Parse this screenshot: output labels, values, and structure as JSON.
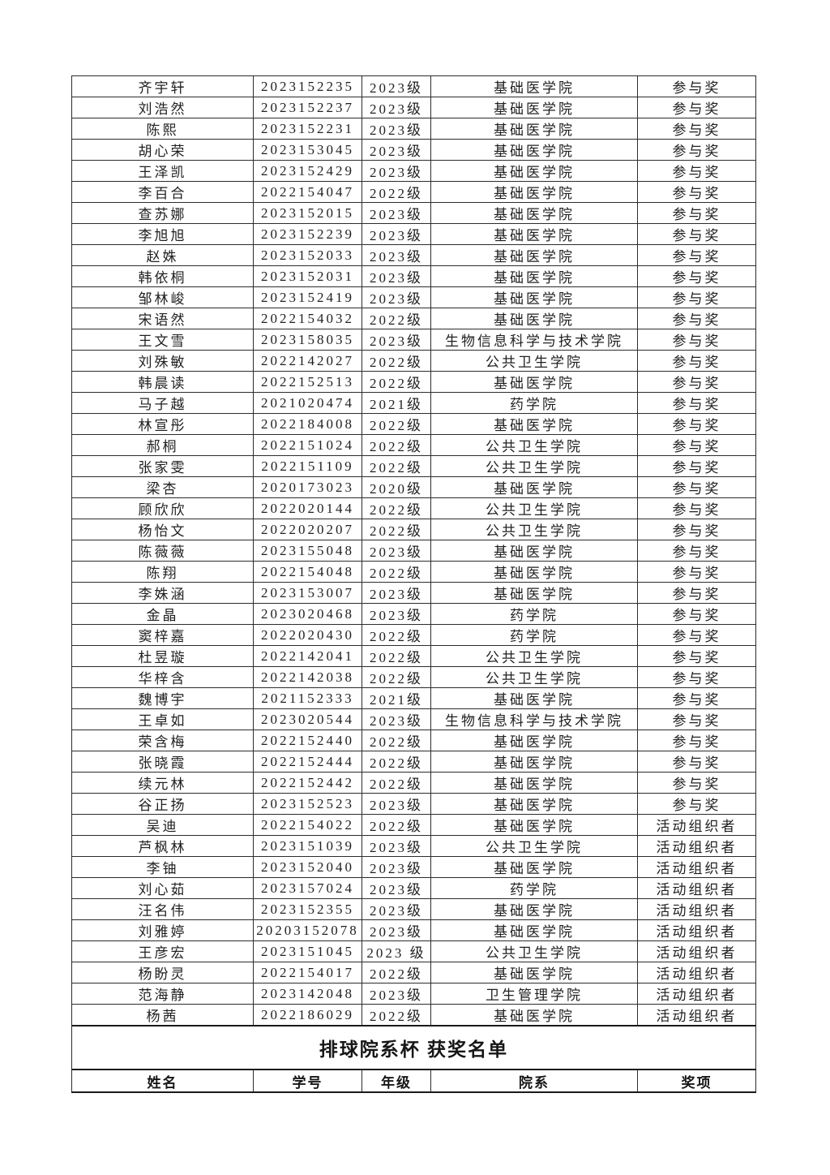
{
  "colors": {
    "page_background": "#ffffff",
    "border": "#2c2c2c",
    "text": "#1f1f1f"
  },
  "section": {
    "title": "排球院系杯 获奖名单"
  },
  "table": {
    "headers": [
      "姓名",
      "学号",
      "年级",
      "院系",
      "奖项"
    ],
    "column_keys": [
      "name",
      "student_id",
      "grade",
      "department",
      "award"
    ],
    "rows": [
      {
        "name": "齐宇轩",
        "student_id": "2023152235",
        "grade": "2023级",
        "department": "基础医学院",
        "award": "参与奖"
      },
      {
        "name": "刘浩然",
        "student_id": "2023152237",
        "grade": "2023级",
        "department": "基础医学院",
        "award": "参与奖"
      },
      {
        "name": "陈熙",
        "student_id": "2023152231",
        "grade": "2023级",
        "department": "基础医学院",
        "award": "参与奖"
      },
      {
        "name": "胡心荣",
        "student_id": "2023153045",
        "grade": "2023级",
        "department": "基础医学院",
        "award": "参与奖"
      },
      {
        "name": "王泽凯",
        "student_id": "2023152429",
        "grade": "2023级",
        "department": "基础医学院",
        "award": "参与奖"
      },
      {
        "name": "李百合",
        "student_id": "2022154047",
        "grade": "2022级",
        "department": "基础医学院",
        "award": "参与奖"
      },
      {
        "name": "查苏娜",
        "student_id": "2023152015",
        "grade": "2023级",
        "department": "基础医学院",
        "award": "参与奖"
      },
      {
        "name": "李旭旭",
        "student_id": "2023152239",
        "grade": "2023级",
        "department": "基础医学院",
        "award": "参与奖"
      },
      {
        "name": "赵姝",
        "student_id": "2023152033",
        "grade": "2023级",
        "department": "基础医学院",
        "award": "参与奖"
      },
      {
        "name": "韩依桐",
        "student_id": "2023152031",
        "grade": "2023级",
        "department": "基础医学院",
        "award": "参与奖"
      },
      {
        "name": "邹林峻",
        "student_id": "2023152419",
        "grade": "2023级",
        "department": "基础医学院",
        "award": "参与奖"
      },
      {
        "name": "宋语然",
        "student_id": "2022154032",
        "grade": "2022级",
        "department": "基础医学院",
        "award": "参与奖"
      },
      {
        "name": "王文雪",
        "student_id": "2023158035",
        "grade": "2023级",
        "department": "生物信息科学与技术学院",
        "award": "参与奖"
      },
      {
        "name": "刘殊敏",
        "student_id": "2022142027",
        "grade": "2022级",
        "department": "公共卫生学院",
        "award": "参与奖"
      },
      {
        "name": "韩晨读",
        "student_id": "2022152513",
        "grade": "2022级",
        "department": "基础医学院",
        "award": "参与奖"
      },
      {
        "name": "马子越",
        "student_id": "2021020474",
        "grade": "2021级",
        "department": "药学院",
        "award": "参与奖"
      },
      {
        "name": "林宣彤",
        "student_id": "2022184008",
        "grade": "2022级",
        "department": "基础医学院",
        "award": "参与奖"
      },
      {
        "name": "郝桐",
        "student_id": "2022151024",
        "grade": "2022级",
        "department": "公共卫生学院",
        "award": "参与奖"
      },
      {
        "name": "张家雯",
        "student_id": "2022151109",
        "grade": "2022级",
        "department": "公共卫生学院",
        "award": "参与奖"
      },
      {
        "name": "梁杏",
        "student_id": "2020173023",
        "grade": "2020级",
        "department": "基础医学院",
        "award": "参与奖"
      },
      {
        "name": "顾欣欣",
        "student_id": "2022020144",
        "grade": "2022级",
        "department": "公共卫生学院",
        "award": "参与奖"
      },
      {
        "name": "杨怡文",
        "student_id": "2022020207",
        "grade": "2022级",
        "department": "公共卫生学院",
        "award": "参与奖"
      },
      {
        "name": "陈薇薇",
        "student_id": "2023155048",
        "grade": "2023级",
        "department": "基础医学院",
        "award": "参与奖"
      },
      {
        "name": "陈翔",
        "student_id": "2022154048",
        "grade": "2022级",
        "department": "基础医学院",
        "award": "参与奖"
      },
      {
        "name": "李姝涵",
        "student_id": "2023153007",
        "grade": "2023级",
        "department": "基础医学院",
        "award": "参与奖"
      },
      {
        "name": "金晶",
        "student_id": "2023020468",
        "grade": "2023级",
        "department": "药学院",
        "award": "参与奖"
      },
      {
        "name": "窦梓嘉",
        "student_id": "2022020430",
        "grade": "2022级",
        "department": "药学院",
        "award": "参与奖"
      },
      {
        "name": "杜昱璇",
        "student_id": "2022142041",
        "grade": "2022级",
        "department": "公共卫生学院",
        "award": "参与奖"
      },
      {
        "name": "华梓含",
        "student_id": "2022142038",
        "grade": "2022级",
        "department": "公共卫生学院",
        "award": "参与奖"
      },
      {
        "name": "魏博宇",
        "student_id": "2021152333",
        "grade": "2021级",
        "department": "基础医学院",
        "award": "参与奖"
      },
      {
        "name": "王卓如",
        "student_id": "2023020544",
        "grade": "2023级",
        "department": "生物信息科学与技术学院",
        "award": "参与奖"
      },
      {
        "name": "荣含梅",
        "student_id": "2022152440",
        "grade": "2022级",
        "department": "基础医学院",
        "award": "参与奖"
      },
      {
        "name": "张晓霞",
        "student_id": "2022152444",
        "grade": "2022级",
        "department": "基础医学院",
        "award": "参与奖"
      },
      {
        "name": "续元林",
        "student_id": "2022152442",
        "grade": "2022级",
        "department": "基础医学院",
        "award": "参与奖"
      },
      {
        "name": "谷正扬",
        "student_id": "2023152523",
        "grade": "2023级",
        "department": "基础医学院",
        "award": "参与奖"
      },
      {
        "name": "吴迪",
        "student_id": "2022154022",
        "grade": "2022级",
        "department": "基础医学院",
        "award": "活动组织者"
      },
      {
        "name": "芦枫林",
        "student_id": "2023151039",
        "grade": "2023级",
        "department": "公共卫生学院",
        "award": "活动组织者"
      },
      {
        "name": "李铀",
        "student_id": "2023152040",
        "grade": "2023级",
        "department": "基础医学院",
        "award": "活动组织者"
      },
      {
        "name": "刘心茹",
        "student_id": "2023157024",
        "grade": "2023级",
        "department": "药学院",
        "award": "活动组织者"
      },
      {
        "name": "汪名伟",
        "student_id": "2023152355",
        "grade": "2023级",
        "department": "基础医学院",
        "award": "活动组织者"
      },
      {
        "name": "刘雅婷",
        "student_id": "20203152078",
        "grade": "2023级",
        "department": "基础医学院",
        "award": "活动组织者"
      },
      {
        "name": "王彦宏",
        "student_id": "2023151045",
        "grade": "2023 级",
        "department": "公共卫生学院",
        "award": "活动组织者"
      },
      {
        "name": "杨盼灵",
        "student_id": "2022154017",
        "grade": "2022级",
        "department": "基础医学院",
        "award": "活动组织者"
      },
      {
        "name": "范海静",
        "student_id": "2023142048",
        "grade": "2023级",
        "department": "卫生管理学院",
        "award": "活动组织者"
      },
      {
        "name": "杨茜",
        "student_id": "2022186029",
        "grade": "2022级",
        "department": "基础医学院",
        "award": "活动组织者"
      }
    ]
  }
}
